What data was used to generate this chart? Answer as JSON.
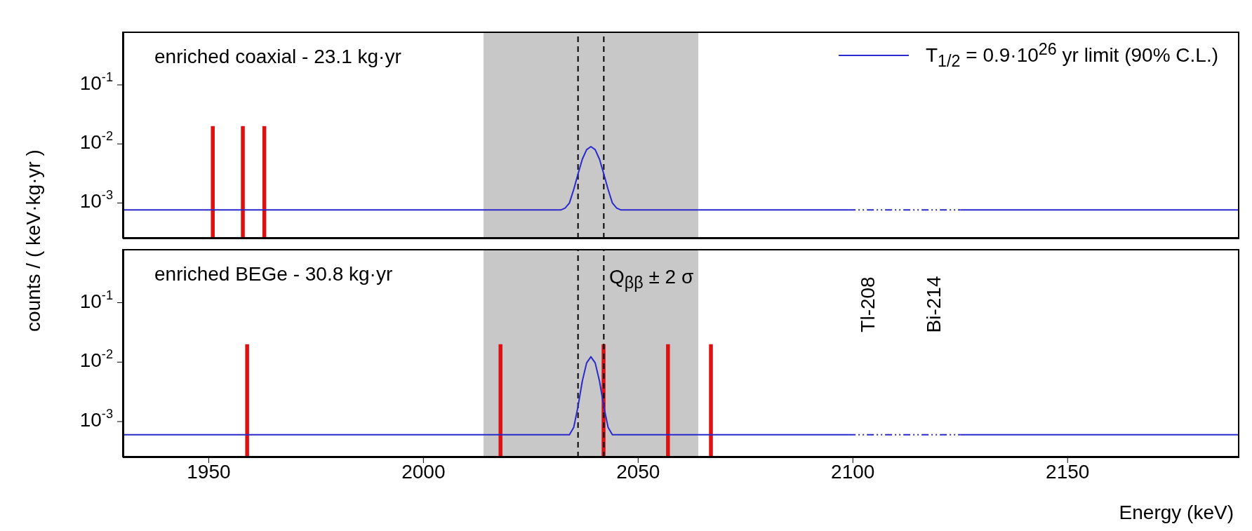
{
  "chart_data": [
    {
      "type": "line",
      "title": "enriched coaxial - 23.1 kg·yr",
      "ylabel": "counts / ( keV·kg·yr )",
      "xlim": [
        1930,
        2190
      ],
      "xticks": [
        1950,
        2000,
        2050,
        2100,
        2150
      ],
      "ylim": [
        0.00025,
        0.8
      ],
      "yticks": [
        {
          "value": 0.1,
          "label": "10$^{-1}$"
        },
        {
          "value": 0.01,
          "label": "10$^{-2}$"
        },
        {
          "value": 0.001,
          "label": "10$^{-3}$"
        }
      ],
      "log": "y",
      "tick_labels": "y",
      "legend": "top right",
      "marker": "none",
      "bands": [
        {
          "axis": "x",
          "from": 2014,
          "to": 2064,
          "color": "#c8c8c8"
        }
      ],
      "ref_lines": [
        {
          "axis": "x",
          "value": 2036,
          "line_style": "dashed",
          "color": "#000000"
        },
        {
          "axis": "x",
          "value": 2042,
          "line_style": "dashed",
          "color": "#000000"
        }
      ],
      "series": [
        {
          "type": "bar",
          "color": "#dd1111",
          "x": [
            1951,
            1958,
            1963
          ],
          "values": [
            0.02,
            0.02,
            0.02
          ]
        },
        {
          "name": "T$_{1/2}$ = 0.9·10$^{26}$ yr limit (90% C.L.)",
          "color": "#2a2acc",
          "line_style": "solid",
          "x": [
            1930,
            2032,
            2033,
            2034,
            2035,
            2036,
            2037,
            2038,
            2039,
            2040,
            2041,
            2042,
            2043,
            2044,
            2045,
            2046,
            2099
          ],
          "values": [
            0.00076,
            0.00076,
            0.00082,
            0.001,
            0.0017,
            0.0031,
            0.0055,
            0.008,
            0.009,
            0.008,
            0.0055,
            0.0031,
            0.0017,
            0.001,
            0.00082,
            0.00076,
            0.00076
          ]
        },
        {
          "color": "#2a2acc",
          "line_style": "dashed",
          "x": [
            2099,
            2125
          ],
          "values": [
            0.00076,
            0.00076
          ]
        },
        {
          "color": "#2a2acc",
          "line_style": "solid",
          "x": [
            2125,
            2190
          ],
          "values": [
            0.00076,
            0.00076
          ]
        }
      ]
    },
    {
      "type": "line",
      "title": "enriched BEGe - 30.8 kg·yr",
      "xlabel": "Energy (keV)",
      "xlim": [
        1930,
        2190
      ],
      "xticks": [
        1950,
        2000,
        2050,
        2100,
        2150
      ],
      "ylim": [
        0.00025,
        0.8
      ],
      "yticks": [
        {
          "value": 0.1,
          "label": "10$^{-1}$"
        },
        {
          "value": 0.01,
          "label": "10$^{-2}$"
        },
        {
          "value": 0.001,
          "label": "10$^{-3}$"
        }
      ],
      "log": "y",
      "marker": "none",
      "bands": [
        {
          "axis": "x",
          "from": 2014,
          "to": 2064,
          "color": "#c8c8c8"
        }
      ],
      "ref_lines": [
        {
          "axis": "x",
          "value": 2036,
          "line_style": "dashed",
          "color": "#000000"
        },
        {
          "axis": "x",
          "value": 2042,
          "line_style": "dashed",
          "color": "#000000"
        }
      ],
      "annotations": [
        "Q$_{ββ}$ ± 2 σ",
        "Tl-208",
        "Bi-214"
      ],
      "series": [
        {
          "type": "bar",
          "color": "#dd1111",
          "x": [
            1959,
            2018,
            2042,
            2057,
            2067
          ],
          "values": [
            0.02,
            0.02,
            0.02,
            0.02,
            0.02
          ]
        },
        {
          "color": "#2a2acc",
          "line_style": "solid",
          "x": [
            1930,
            2033,
            2034,
            2035,
            2036,
            2037,
            2038,
            2039,
            2040,
            2041,
            2042,
            2043,
            2044,
            2045,
            2099
          ],
          "values": [
            0.0006,
            0.0006,
            0.0006,
            0.0008,
            0.0018,
            0.0048,
            0.0097,
            0.0123,
            0.0097,
            0.0048,
            0.0018,
            0.0008,
            0.0006,
            0.0006,
            0.0006
          ]
        },
        {
          "color": "#2a2acc",
          "line_style": "dashed",
          "x": [
            2099,
            2125
          ],
          "values": [
            0.0006,
            0.0006
          ]
        },
        {
          "color": "#2a2acc",
          "line_style": "solid",
          "x": [
            2125,
            2190
          ],
          "values": [
            0.0006,
            0.0006
          ]
        }
      ]
    }
  ]
}
